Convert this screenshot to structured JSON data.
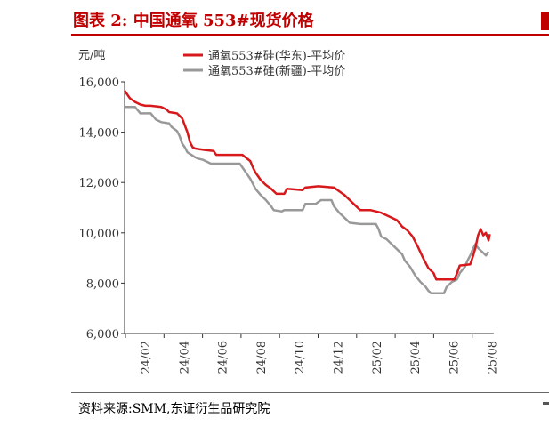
{
  "header": {
    "title": "图表 2:  中国通氧 553#现货价格"
  },
  "footer": {
    "source": "资料来源:SMM,东证衍生品研究院"
  },
  "chart_data": {
    "type": "line",
    "unit_label": "元/吨",
    "y_ticks": [
      "16,000",
      "14,000",
      "12,000",
      "10,000",
      "8,000",
      "6,000"
    ],
    "x_ticks": [
      "24/02",
      "24/04",
      "24/06",
      "24/08",
      "24/10",
      "24/12",
      "25/02",
      "25/04",
      "25/06",
      "25/08"
    ],
    "ylim": [
      6000,
      16000
    ],
    "colors": {
      "east": "#d7191c",
      "xinjiang": "#999999"
    },
    "series": [
      {
        "name": "通氧553#硅(华东)-平均价",
        "points": [
          [
            0,
            15650
          ],
          [
            2,
            15350
          ],
          [
            4,
            15200
          ],
          [
            6,
            15100
          ],
          [
            8,
            15050
          ],
          [
            10,
            15050
          ],
          [
            14,
            15000
          ],
          [
            16,
            14900
          ],
          [
            17,
            14800
          ],
          [
            20,
            14750
          ],
          [
            22,
            14550
          ],
          [
            24,
            14000
          ],
          [
            25,
            13600
          ],
          [
            26,
            13400
          ],
          [
            27,
            13350
          ],
          [
            30,
            13300
          ],
          [
            34,
            13250
          ],
          [
            35,
            13100
          ],
          [
            45,
            13100
          ],
          [
            48,
            12850
          ],
          [
            49,
            12600
          ],
          [
            50,
            12400
          ],
          [
            52,
            12100
          ],
          [
            54,
            11900
          ],
          [
            56,
            11750
          ],
          [
            58,
            11550
          ],
          [
            61,
            11550
          ],
          [
            62,
            11750
          ],
          [
            68,
            11700
          ],
          [
            69,
            11800
          ],
          [
            74,
            11850
          ],
          [
            80,
            11800
          ],
          [
            82,
            11650
          ],
          [
            84,
            11500
          ],
          [
            86,
            11300
          ],
          [
            88,
            11100
          ],
          [
            90,
            10900
          ],
          [
            94,
            10900
          ],
          [
            96,
            10850
          ],
          [
            98,
            10800
          ],
          [
            100,
            10700
          ],
          [
            102,
            10600
          ],
          [
            104,
            10500
          ],
          [
            106,
            10250
          ],
          [
            108,
            10100
          ],
          [
            110,
            9850
          ],
          [
            112,
            9450
          ],
          [
            114,
            9000
          ],
          [
            116,
            8600
          ],
          [
            118,
            8400
          ],
          [
            119,
            8150
          ],
          [
            126,
            8150
          ],
          [
            127,
            8400
          ],
          [
            128,
            8700
          ],
          [
            132,
            8750
          ],
          [
            133,
            9050
          ],
          [
            134,
            9400
          ],
          [
            135,
            9900
          ],
          [
            136,
            10150
          ],
          [
            137,
            9900
          ],
          [
            138,
            10000
          ],
          [
            139,
            9700
          ],
          [
            139.5,
            9950
          ]
        ]
      },
      {
        "name": "通氧553#硅(新疆)-平均价",
        "points": [
          [
            0,
            15000
          ],
          [
            4,
            15000
          ],
          [
            6,
            14750
          ],
          [
            10,
            14750
          ],
          [
            12,
            14500
          ],
          [
            14,
            14400
          ],
          [
            17,
            14350
          ],
          [
            18,
            14200
          ],
          [
            20,
            14050
          ],
          [
            21,
            13850
          ],
          [
            22,
            13550
          ],
          [
            23,
            13400
          ],
          [
            24,
            13200
          ],
          [
            27,
            13000
          ],
          [
            28,
            12950
          ],
          [
            30,
            12900
          ],
          [
            33,
            12750
          ],
          [
            44,
            12750
          ],
          [
            45,
            12600
          ],
          [
            46,
            12450
          ],
          [
            47,
            12300
          ],
          [
            48,
            12150
          ],
          [
            49,
            11950
          ],
          [
            50,
            11750
          ],
          [
            52,
            11500
          ],
          [
            54,
            11300
          ],
          [
            56,
            11050
          ],
          [
            57,
            10900
          ],
          [
            60,
            10850
          ],
          [
            61,
            10900
          ],
          [
            68,
            10900
          ],
          [
            69,
            11150
          ],
          [
            73,
            11150
          ],
          [
            75,
            11300
          ],
          [
            79,
            11300
          ],
          [
            80,
            11050
          ],
          [
            82,
            10800
          ],
          [
            84,
            10600
          ],
          [
            86,
            10400
          ],
          [
            90,
            10350
          ],
          [
            96,
            10350
          ],
          [
            97,
            10150
          ],
          [
            98,
            9850
          ],
          [
            100,
            9750
          ],
          [
            102,
            9550
          ],
          [
            104,
            9350
          ],
          [
            106,
            9150
          ],
          [
            107,
            8900
          ],
          [
            109,
            8650
          ],
          [
            111,
            8300
          ],
          [
            113,
            8050
          ],
          [
            115,
            7850
          ],
          [
            116,
            7700
          ],
          [
            117,
            7600
          ],
          [
            122,
            7600
          ],
          [
            123,
            7850
          ],
          [
            125,
            8050
          ],
          [
            127,
            8150
          ],
          [
            128,
            8400
          ],
          [
            130,
            8650
          ],
          [
            131,
            8900
          ],
          [
            132,
            9100
          ],
          [
            133,
            9350
          ],
          [
            134,
            9550
          ],
          [
            135,
            9400
          ],
          [
            136,
            9300
          ],
          [
            137,
            9200
          ],
          [
            138,
            9100
          ],
          [
            139,
            9250
          ]
        ]
      }
    ]
  }
}
